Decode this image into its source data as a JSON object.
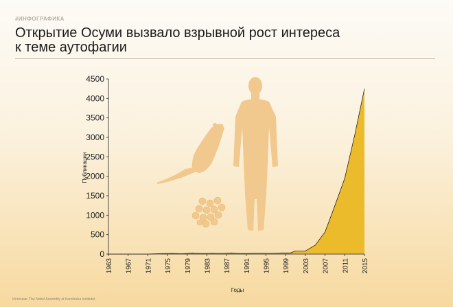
{
  "header": {
    "kicker": "#ИНФОГРАФИКА",
    "title_line1": "Открытие Осуми вызвало взрывной рост интереса",
    "title_line2": "к теме аутофагии"
  },
  "footer": {
    "source": "Источник: The Nobel Assembly at Karolinska Institutet"
  },
  "colors": {
    "area_fill": "#ebbb2c",
    "area_line": "#222222",
    "illustration": "#f1c88d",
    "axis": "#222222"
  },
  "chart_data": {
    "type": "area",
    "title": "",
    "xlabel": "Годы",
    "ylabel": "Публикации",
    "xlim": [
      1963,
      2015
    ],
    "ylim": [
      0,
      4500
    ],
    "x_ticks": [
      "1963",
      "1967",
      "1971",
      "1975",
      "1979",
      "1983",
      "1987",
      "1991",
      "1995",
      "1999",
      "2003",
      "2007",
      "2011",
      "2015"
    ],
    "y_ticks": [
      "0",
      "500",
      "1000",
      "1500",
      "2000",
      "2500",
      "3000",
      "3500",
      "4000",
      "4500"
    ],
    "grid": false,
    "legend": "none",
    "x": [
      1963,
      1967,
      1971,
      1972,
      1974,
      1976,
      1978,
      1980,
      1982,
      1984,
      1986,
      1988,
      1990,
      1992,
      1994,
      1996,
      1998,
      2000,
      2001,
      2003,
      2005,
      2007,
      2009,
      2011,
      2013,
      2015
    ],
    "values": [
      0,
      0,
      0,
      5,
      15,
      20,
      10,
      30,
      15,
      25,
      20,
      30,
      15,
      20,
      25,
      20,
      30,
      30,
      80,
      80,
      230,
      570,
      1250,
      1950,
      3050,
      4250
    ]
  }
}
